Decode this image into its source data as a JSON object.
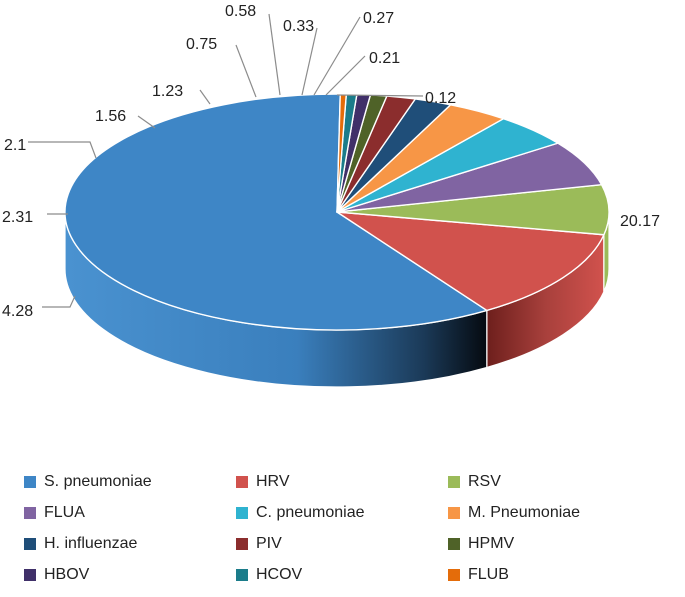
{
  "chart_data": {
    "type": "pie",
    "style": "3d",
    "title": "",
    "series": [
      {
        "values": [
          20.17,
          4.28,
          2.31,
          2.1,
          1.56,
          1.23,
          0.75,
          0.58,
          0.33,
          0.27,
          0.21,
          0.12
        ]
      }
    ],
    "categories": [
      "S. pneumoniae",
      "HRV",
      "RSV",
      "FLUA",
      "C. pneumoniae",
      "M. Pneumoniae",
      "H. influenzae",
      "PIV",
      "HPMV",
      "HBOV",
      "HCOV",
      "FLUB"
    ],
    "data_labels": [
      "20.17",
      "4.28",
      "2.31",
      "2.1",
      "1.56",
      "1.23",
      "0.75",
      "0.58",
      "0.33",
      "0.27",
      "0.21",
      "0.12"
    ],
    "colors": [
      "#3E86C6",
      "#D1524D",
      "#9BBB59",
      "#8064A2",
      "#2FB3D0",
      "#F79646",
      "#1F4E79",
      "#8B2D2D",
      "#4F6228",
      "#403069",
      "#1B7C8A",
      "#E46C0A"
    ],
    "legend_position": "bottom"
  }
}
